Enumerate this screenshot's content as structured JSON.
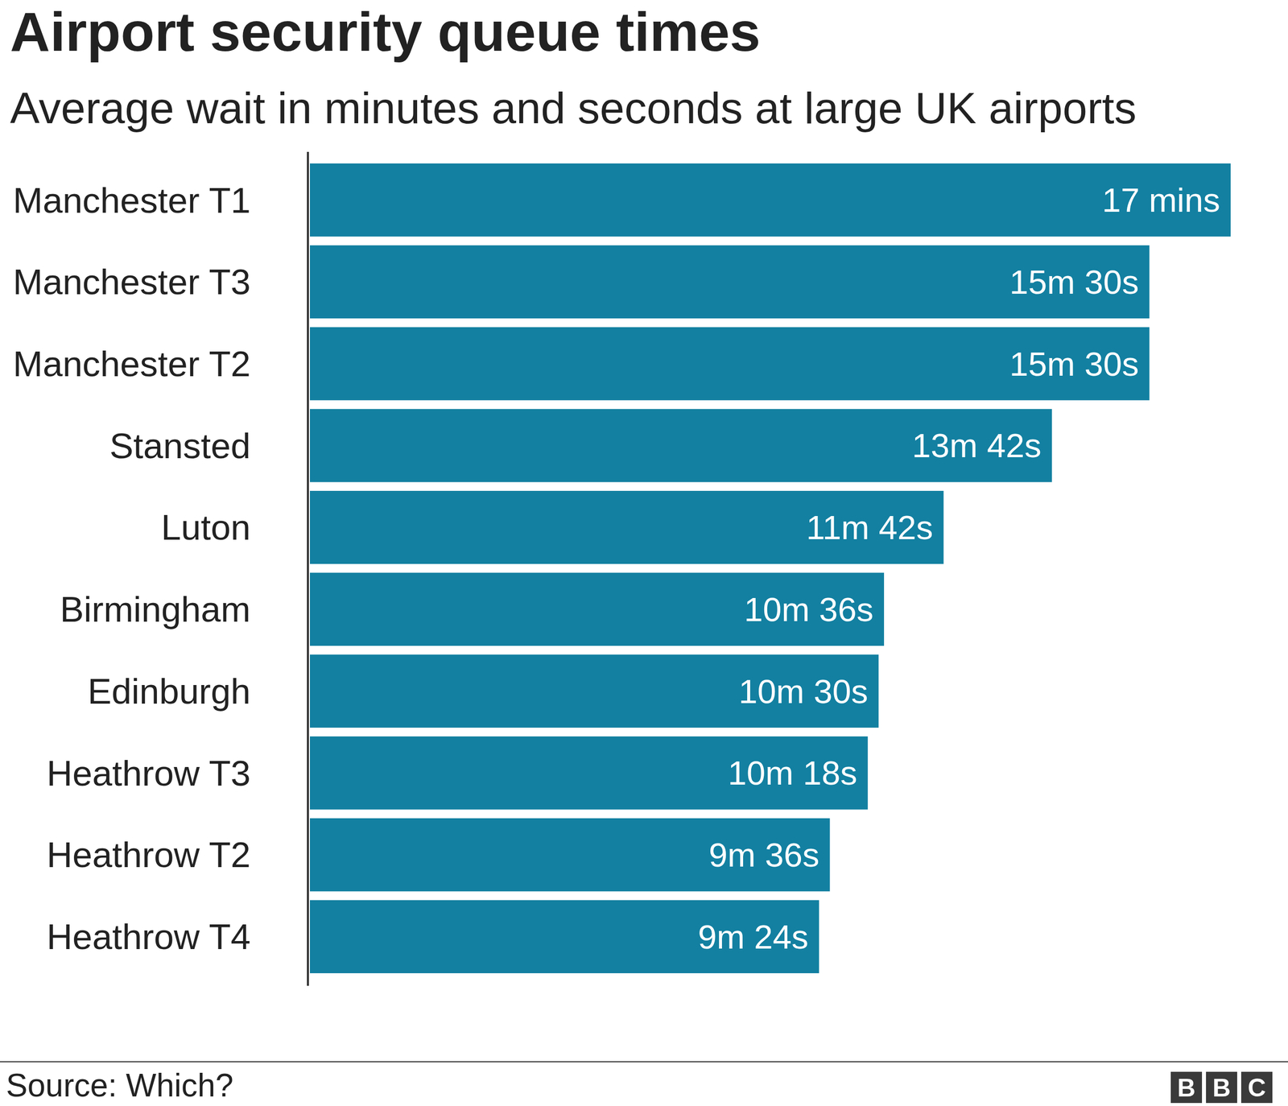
{
  "chart_data": {
    "type": "bar",
    "orientation": "horizontal",
    "title": "Airport security queue times",
    "subtitle": "Average wait in minutes and seconds at large UK airports",
    "categories": [
      "Manchester T1",
      "Manchester T3",
      "Manchester T2",
      "Stansted",
      "Luton",
      "Birmingham",
      "Edinburgh",
      "Heathrow T3",
      "Heathrow T2",
      "Heathrow T4"
    ],
    "values": [
      17,
      15.5,
      15.5,
      13.7,
      11.7,
      10.6,
      10.5,
      10.3,
      9.6,
      9.4
    ],
    "value_labels": [
      "17 mins",
      "15m 30s",
      "15m 30s",
      "13m 42s",
      "11m 42s",
      "10m 36s",
      "10m 30s",
      "10m 18s",
      "9m 36s",
      "9m 24s"
    ],
    "color": "#1380a1",
    "xlim": [
      0,
      17
    ],
    "data_labels": true,
    "tick_labels": "y",
    "source": "Source: Which?",
    "logo": [
      "B",
      "B",
      "C"
    ]
  }
}
